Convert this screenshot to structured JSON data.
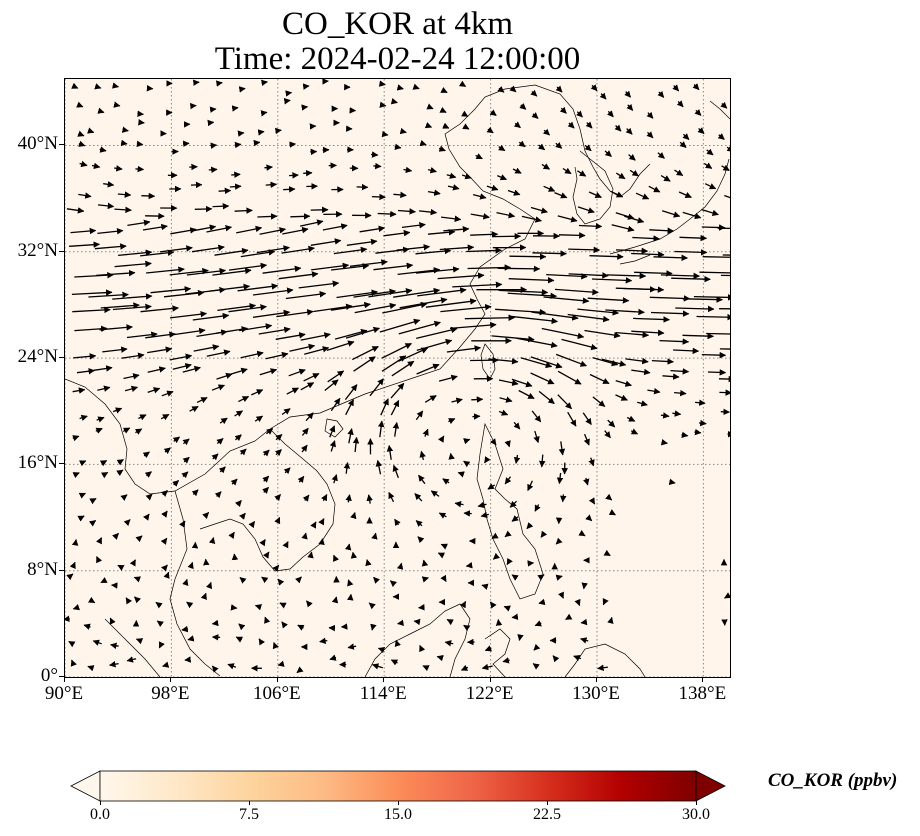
{
  "title": {
    "line1": "CO_KOR at 4km",
    "line2": "Time: 2024-02-24 12:00:00"
  },
  "map": {
    "projection": "PlateCarree",
    "extent": {
      "lon": [
        90,
        140
      ],
      "lat": [
        0,
        45
      ]
    },
    "background_value_color": "#fff5ea",
    "coastline_color": "#000000",
    "gridlines": true,
    "gridline_style": "dotted gray",
    "lon_ticks": [
      {
        "value": 90,
        "label": "90°E"
      },
      {
        "value": 98,
        "label": "98°E"
      },
      {
        "value": 106,
        "label": "106°E"
      },
      {
        "value": 114,
        "label": "114°E"
      },
      {
        "value": 122,
        "label": "122°E"
      },
      {
        "value": 130,
        "label": "130°E"
      },
      {
        "value": 138,
        "label": "138°E"
      }
    ],
    "lat_ticks": [
      {
        "value": 0,
        "label": "0°"
      },
      {
        "value": 8,
        "label": "8°N"
      },
      {
        "value": 16,
        "label": "16°N"
      },
      {
        "value": 24,
        "label": "24°N"
      },
      {
        "value": 32,
        "label": "32°N"
      },
      {
        "value": 40,
        "label": "40°N"
      }
    ],
    "wind_vectors": "quiver field: strong westerly jet near 24–34°N, anticyclonic circulation centred near 120°E 20°N, weak variable winds south of 14°N"
  },
  "colorbar": {
    "label": "CO_KOR (ppbv)",
    "min": 0.0,
    "max": 30.0,
    "extend": "both",
    "colormap": "OrRd",
    "stops": [
      "#fff7ec",
      "#fee8c8",
      "#fdd49e",
      "#fdbb84",
      "#fc8d59",
      "#ef6548",
      "#d7301f",
      "#b30000",
      "#7f0000"
    ],
    "ticks": [
      {
        "value": 0.0,
        "label": "0.0"
      },
      {
        "value": 7.5,
        "label": "7.5"
      },
      {
        "value": 15.0,
        "label": "15.0"
      },
      {
        "value": 22.5,
        "label": "22.5"
      },
      {
        "value": 30.0,
        "label": "30.0"
      }
    ]
  }
}
